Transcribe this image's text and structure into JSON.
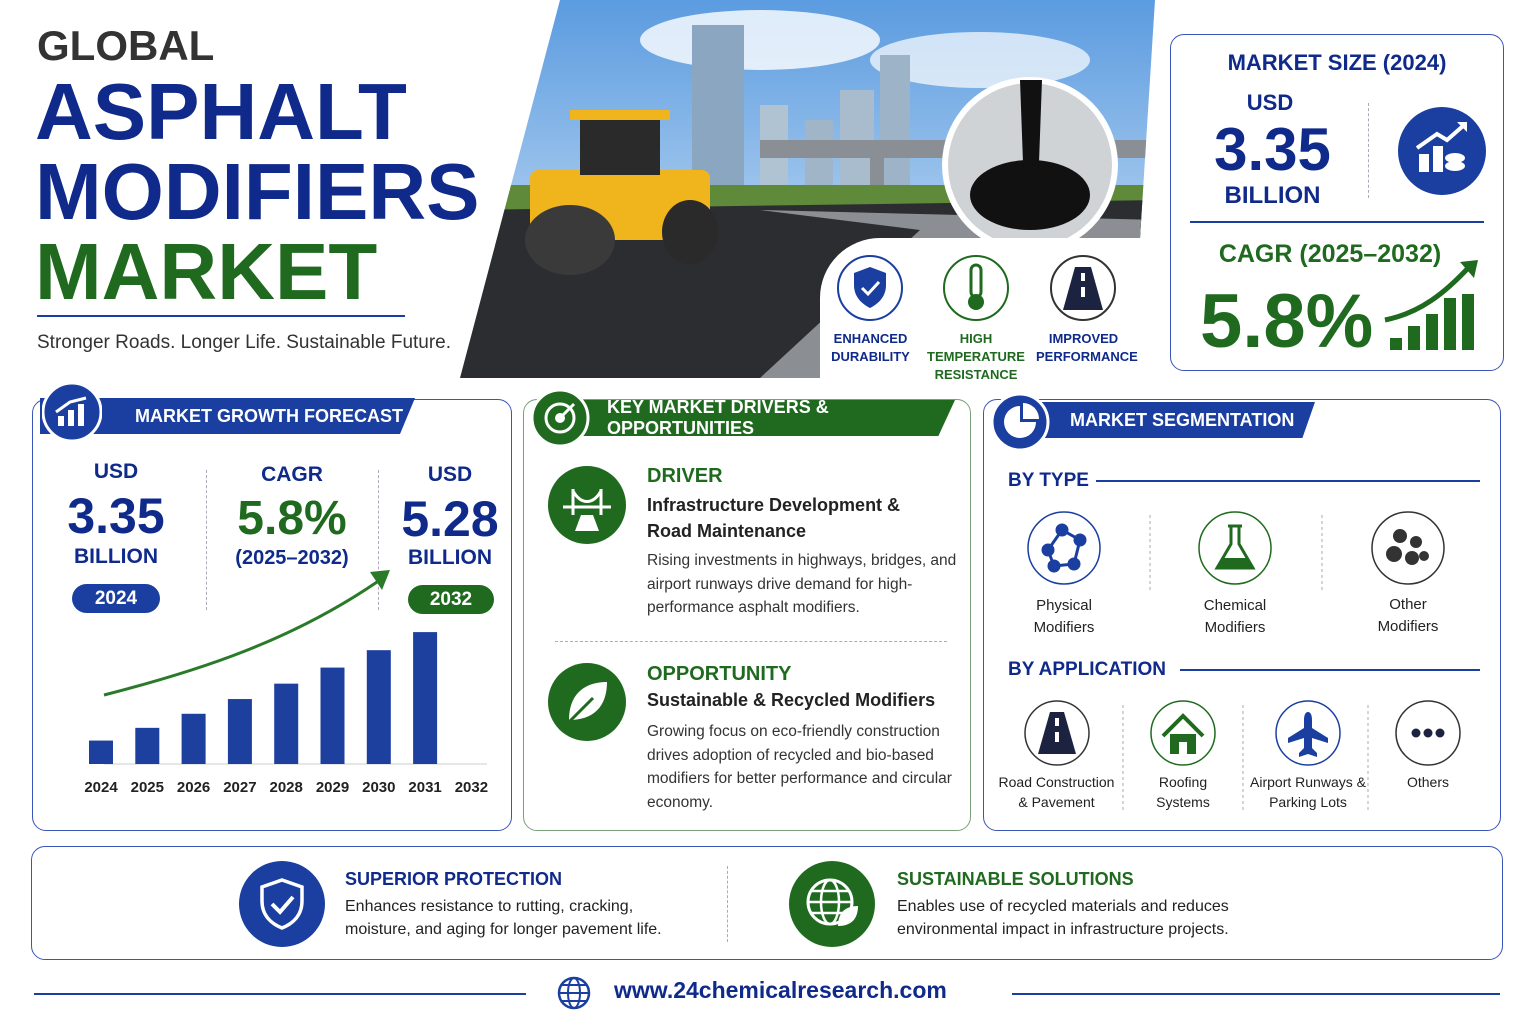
{
  "header": {
    "eyebrow": "GLOBAL",
    "title_line1": "ASPHALT",
    "title_line2": "MODIFIERS",
    "title_line3": "MARKET",
    "tagline": "Stronger Roads. Longer Life. Sustainable Future."
  },
  "features": [
    {
      "label": "ENHANCED DURABILITY"
    },
    {
      "label": "HIGH TEMPERATURE RESISTANCE"
    },
    {
      "label": "IMPROVED PERFORMANCE"
    }
  ],
  "market_size": {
    "title": "MARKET SIZE (2024)",
    "currency": "USD",
    "value": "3.35",
    "unit": "BILLION",
    "cagr_title": "CAGR (2025–2032)",
    "cagr": "5.8%"
  },
  "growth_forecast": {
    "title": "MARKET GROWTH FORECAST",
    "start": {
      "currency": "USD",
      "value": "3.35",
      "unit": "BILLION",
      "year": "2024"
    },
    "cagr": {
      "label": "CAGR",
      "value": "5.8%",
      "period": "(2025–2032)"
    },
    "end": {
      "currency": "USD",
      "value": "5.28",
      "unit": "BILLION",
      "year": "2032"
    }
  },
  "chart_data": {
    "type": "bar",
    "categories": [
      "2024",
      "2025",
      "2026",
      "2027",
      "2028",
      "2029",
      "2030",
      "2031",
      "2032"
    ],
    "values": [
      3.35,
      3.54,
      3.75,
      3.97,
      4.2,
      4.44,
      4.7,
      4.97,
      null
    ],
    "color": "#1d3f9e",
    "ylim": [
      3,
      5.3
    ]
  },
  "drivers": {
    "title": "KEY MARKET DRIVERS & OPPORTUNITIES",
    "driver": {
      "label": "DRIVER",
      "heading": "Infrastructure Development & Road Maintenance",
      "text": "Rising investments in highways, bridges, and airport runways drive demand for high-performance asphalt modifiers."
    },
    "opportunity": {
      "label": "OPPORTUNITY",
      "heading": "Sustainable & Recycled Modifiers",
      "text": "Growing focus on eco-friendly construction drives adoption of recycled and bio-based modifiers for better performance and circular economy."
    }
  },
  "segmentation": {
    "title": "MARKET SEGMENTATION",
    "by_type": {
      "label": "BY TYPE",
      "items": [
        "Physical Modifiers",
        "Chemical Modifiers",
        "Other Modifiers"
      ]
    },
    "by_application": {
      "label": "BY APPLICATION",
      "items": [
        "Road Construction & Pavement",
        "Roofing Systems",
        "Airport Runways & Parking Lots",
        "Others"
      ]
    }
  },
  "benefits": [
    {
      "title": "SUPERIOR PROTECTION",
      "text": "Enhances resistance to rutting, cracking, moisture, and aging for longer pavement life."
    },
    {
      "title": "SUSTAINABLE SOLUTIONS",
      "text": "Enables use of recycled materials and reduces environmental impact in infrastructure projects."
    }
  ],
  "footer": {
    "url": "www.24chemicalresearch.com"
  }
}
